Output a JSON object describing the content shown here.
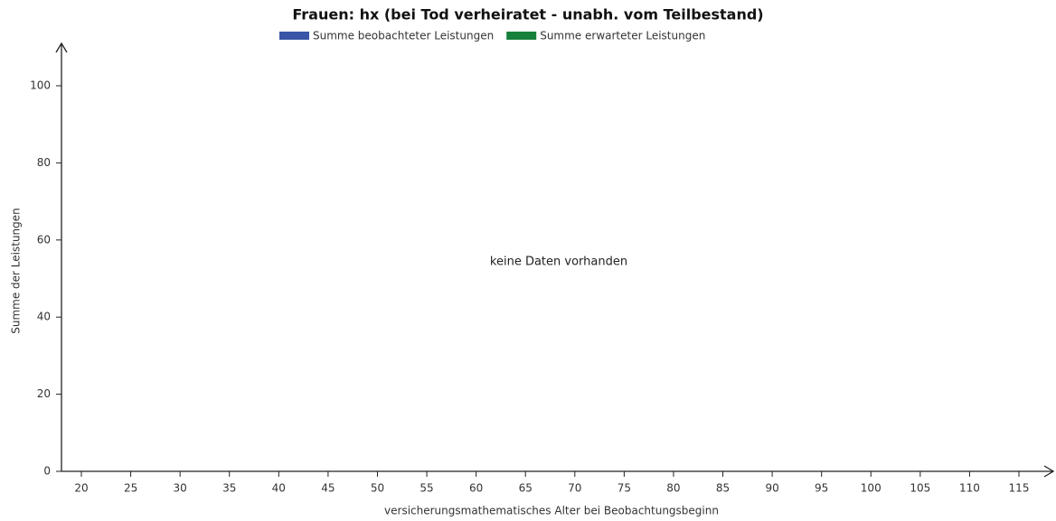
{
  "chart_data": {
    "type": "bar",
    "title": "Frauen: hx (bei Tod verheiratet - unabh. vom Teilbestand)",
    "x_label": "versicherungsmathematisches Alter bei Beobachtungsbeginn",
    "y_label": "Summe der Leistungen",
    "annotation": "keine Daten vorhanden",
    "series": [
      {
        "name": "Summe beobachteter Leistungen",
        "color": "#3a55a8",
        "values": []
      },
      {
        "name": "Summe erwarteter Leistungen",
        "color": "#17803a",
        "values": []
      }
    ],
    "xlim": [
      20,
      115
    ],
    "xticks": [
      20,
      25,
      30,
      35,
      40,
      45,
      50,
      55,
      60,
      65,
      70,
      75,
      80,
      85,
      90,
      95,
      100,
      105,
      110,
      115
    ],
    "ylim": [
      0,
      100
    ],
    "yticks": [
      0,
      20,
      40,
      60,
      80,
      100
    ]
  }
}
